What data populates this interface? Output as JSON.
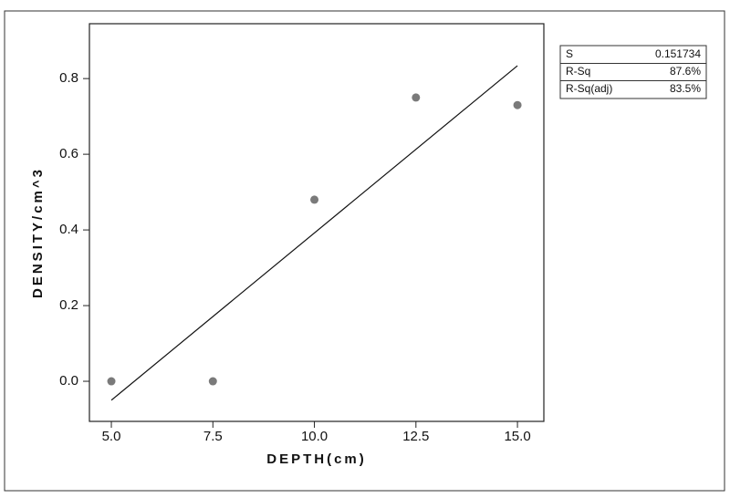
{
  "chart_data": {
    "type": "scatter",
    "xlabel": "DEPTH(cm)",
    "ylabel": "DENSITY/cm^3",
    "x": [
      5,
      7.5,
      10,
      12.5,
      15
    ],
    "values": [
      0.0,
      0.0,
      0.48,
      0.75,
      0.73
    ],
    "color": "#7a7a7a",
    "fit_line": {
      "x": [
        5,
        15
      ],
      "values": [
        -0.05,
        0.834
      ],
      "color": "#111111"
    },
    "xlim": [
      4.46,
      15.65
    ],
    "ylim": [
      -0.106,
      0.945
    ],
    "xticks": [
      {
        "value": 5,
        "label": "5.0"
      },
      {
        "value": 7.5,
        "label": "7.5"
      },
      {
        "value": 10,
        "label": "10.0"
      },
      {
        "value": 12.5,
        "label": "12.5"
      },
      {
        "value": 15,
        "label": "15.0"
      }
    ],
    "yticks": [
      {
        "value": 0,
        "label": "0.0"
      },
      {
        "value": 0.2,
        "label": "0.2"
      },
      {
        "value": 0.4,
        "label": "0.4"
      },
      {
        "value": 0.6,
        "label": "0.6"
      },
      {
        "value": 0.8,
        "label": "0.8"
      }
    ],
    "stats": [
      [
        "S",
        "0.151734"
      ],
      [
        "R-Sq",
        "87.6%"
      ],
      [
        "R-Sq(adj)",
        "83.5%"
      ]
    ]
  }
}
